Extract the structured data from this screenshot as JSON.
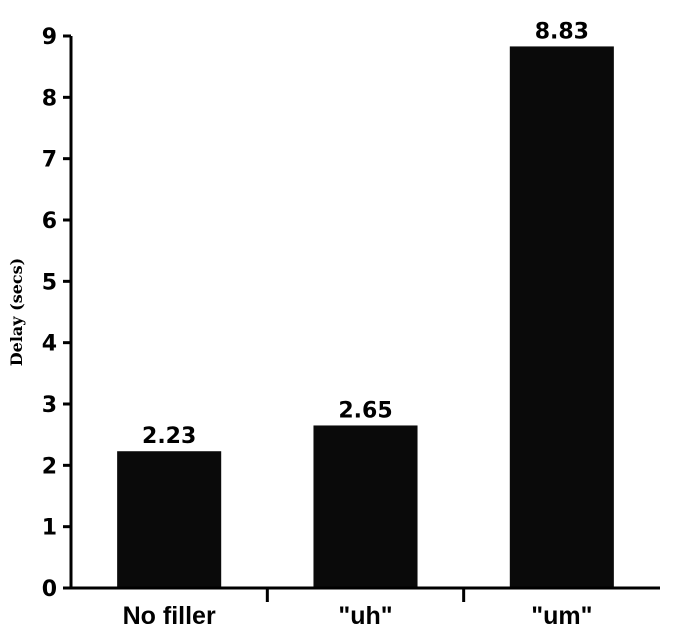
{
  "chart_data": {
    "type": "bar",
    "categories": [
      "No filler",
      "\"uh\"",
      "\"um\""
    ],
    "values": [
      2.23,
      2.65,
      8.83
    ],
    "value_labels": [
      "2.23",
      "2.65",
      "8.83"
    ],
    "title": "",
    "xlabel": "",
    "ylabel": "Delay (secs)",
    "ylim": [
      0,
      9
    ],
    "yticks": [
      "0",
      "1",
      "2",
      "3",
      "4",
      "5",
      "6",
      "7",
      "8",
      "9"
    ],
    "grid": false,
    "legend": "none",
    "bar_color": "#0a0a0a"
  }
}
